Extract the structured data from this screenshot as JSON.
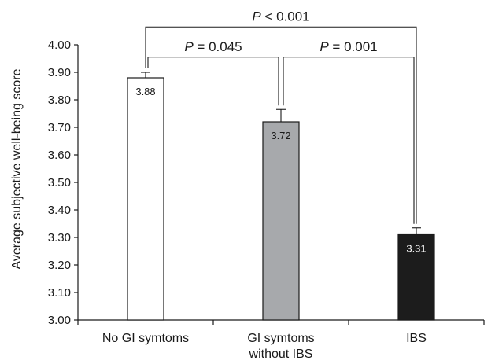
{
  "chart_data": {
    "type": "bar",
    "categories": [
      [
        "No GI symtoms"
      ],
      [
        "GI symtoms",
        "without IBS"
      ],
      [
        "IBS"
      ]
    ],
    "values": [
      3.88,
      3.72,
      3.31
    ],
    "value_labels": [
      "3.88",
      "3.72",
      "3.31"
    ],
    "error_upper": [
      3.9,
      3.765,
      3.335
    ],
    "bar_colors": [
      "#ffffff",
      "#a7a9ac",
      "#1c1c1c"
    ],
    "value_label_colors": [
      "#1a1a1a",
      "#1a1a1a",
      "#ffffff"
    ],
    "ylabel": "Average subjective well-being score",
    "ylim": [
      3.0,
      4.0
    ],
    "yticks": [
      3.0,
      3.1,
      3.2,
      3.3,
      3.4,
      3.5,
      3.6,
      3.7,
      3.8,
      3.9,
      4.0
    ],
    "ytick_labels": [
      "3.00",
      "3.10",
      "3.20",
      "3.30",
      "3.40",
      "3.50",
      "3.60",
      "3.70",
      "3.80",
      "3.90",
      "4.00"
    ],
    "grid": false,
    "significance": [
      {
        "from": 0,
        "to": 2,
        "level": 4.065,
        "p": "P",
        "text": " < 0.001"
      },
      {
        "from": 0,
        "to": 1,
        "level": 3.955,
        "p": "P",
        "text": " = 0.045"
      },
      {
        "from": 1,
        "to": 2,
        "level": 3.955,
        "p": "P",
        "text": " = 0.001"
      }
    ]
  }
}
